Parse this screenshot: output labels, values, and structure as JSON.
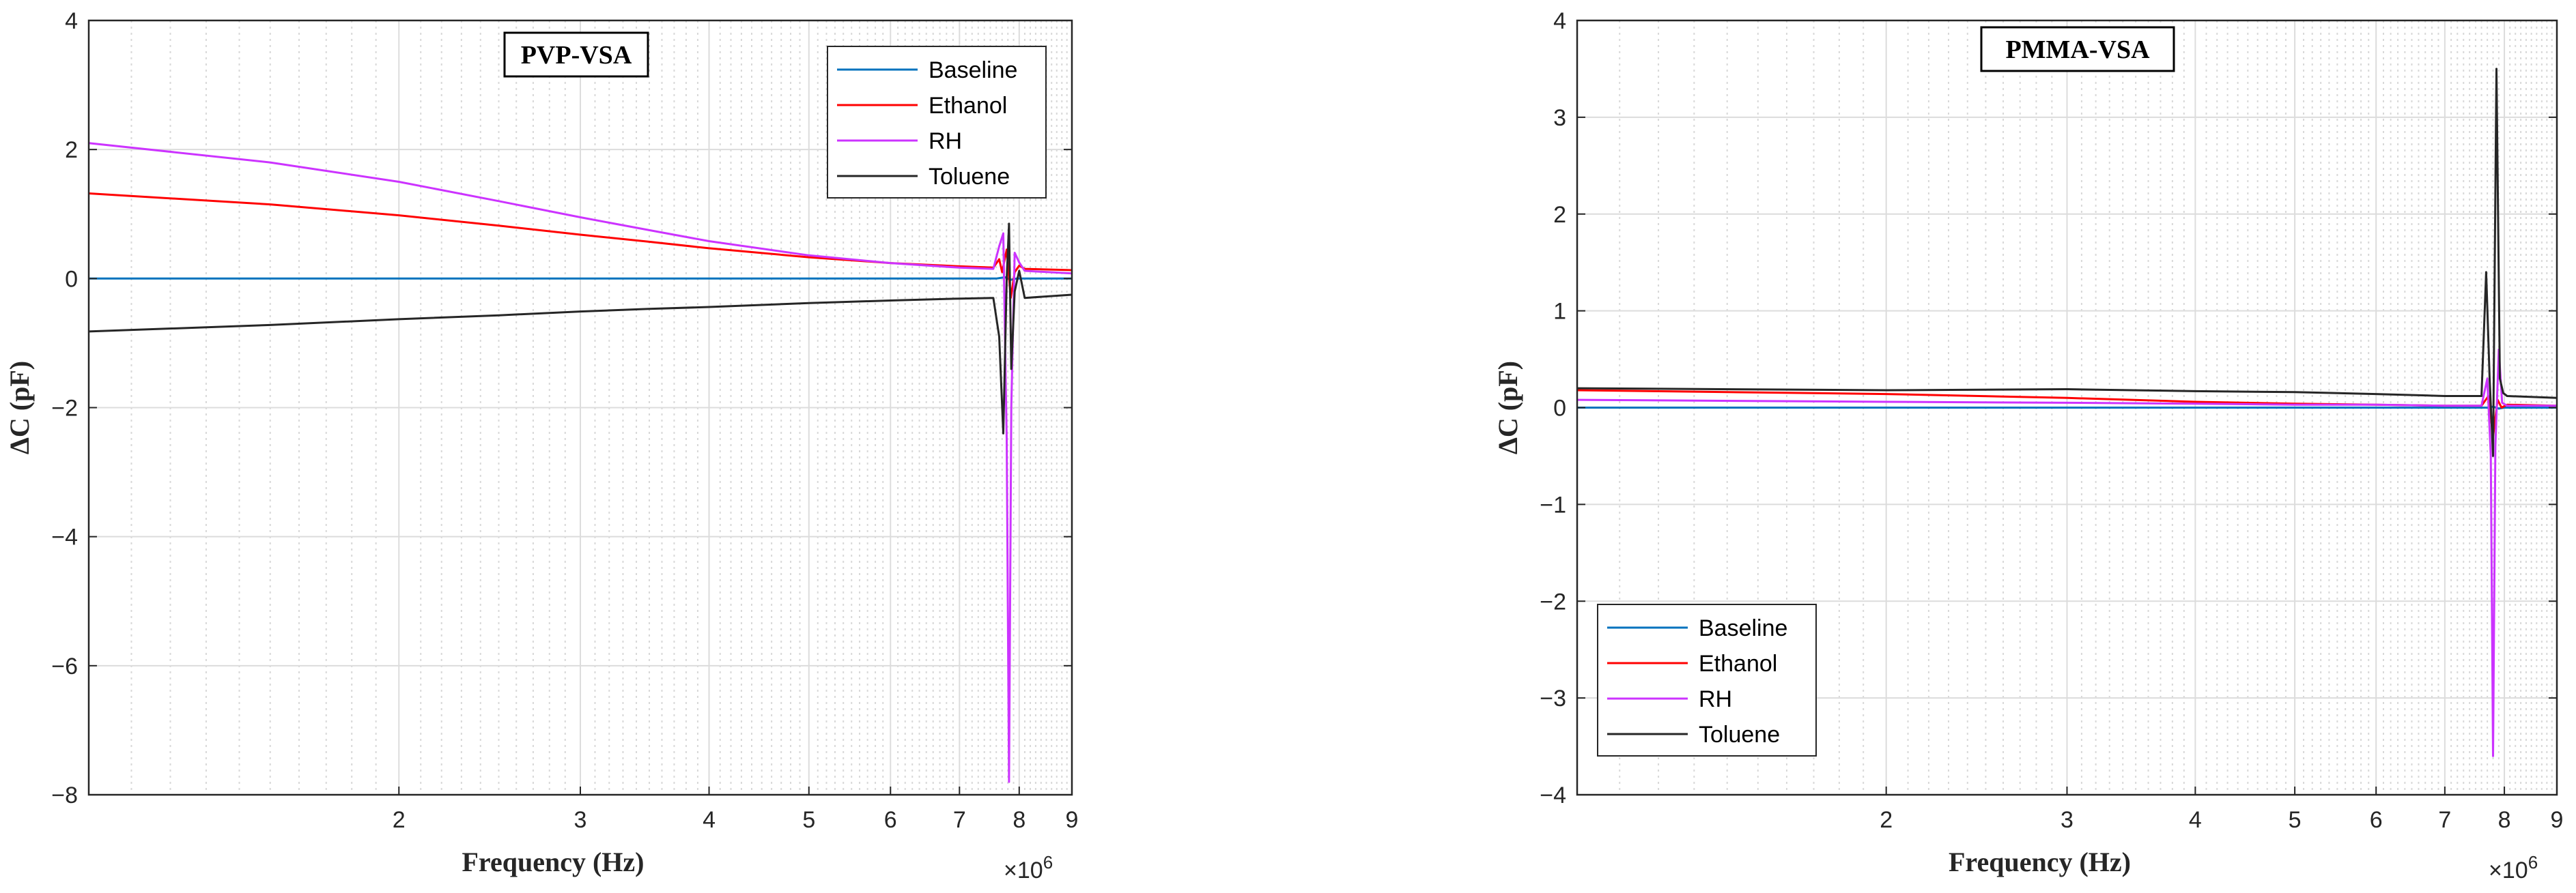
{
  "chart_data": [
    {
      "type": "line",
      "title": "PVP-VSA",
      "xlabel": "Frequency (Hz)",
      "ylabel": "ΔC (pF)",
      "xscale": "log",
      "xlim": [
        1.0,
        9.0
      ],
      "x_multiplier": "×10",
      "x_multiplier_exp": "6",
      "ylim": [
        -8,
        4
      ],
      "yticks": [
        -8,
        -6,
        -4,
        -2,
        0,
        2,
        4
      ],
      "yticklabels": [
        "−8",
        "−6",
        "−4",
        "−2",
        "0",
        "2",
        "4"
      ],
      "xticks": [
        2,
        3,
        4,
        5,
        6,
        7,
        8,
        9
      ],
      "xticklabels": [
        "2",
        "3",
        "4",
        "5",
        "6",
        "7",
        "8",
        "9"
      ],
      "grid": true,
      "legend_position": "top-right",
      "series": [
        {
          "name": "Baseline",
          "color": "#0072BD",
          "x": [
            1.0,
            2.0,
            3.0,
            4.0,
            5.0,
            6.0,
            7.0,
            7.6,
            7.75,
            7.85,
            7.95,
            8.1,
            9.0
          ],
          "y": [
            0.0,
            0.0,
            0.0,
            0.0,
            0.0,
            0.0,
            0.0,
            0.0,
            0.02,
            -0.02,
            0.0,
            0.0,
            0.0
          ]
        },
        {
          "name": "Ethanol",
          "color": "#FF0000",
          "x": [
            1.0,
            1.5,
            2.0,
            2.5,
            3.0,
            3.5,
            4.0,
            5.0,
            6.0,
            7.0,
            7.55,
            7.65,
            7.7,
            7.78,
            7.85,
            7.92,
            8.0,
            8.1,
            9.0
          ],
          "y": [
            1.32,
            1.15,
            0.98,
            0.82,
            0.68,
            0.57,
            0.47,
            0.33,
            0.24,
            0.19,
            0.17,
            0.3,
            0.1,
            0.45,
            -0.3,
            0.1,
            0.2,
            0.15,
            0.13
          ]
        },
        {
          "name": "RH",
          "color": "#CC33FF",
          "x": [
            1.0,
            1.5,
            2.0,
            2.5,
            3.0,
            3.5,
            4.0,
            5.0,
            6.0,
            7.0,
            7.55,
            7.65,
            7.72,
            7.78,
            7.82,
            7.86,
            7.92,
            8.0,
            8.1,
            9.0
          ],
          "y": [
            2.1,
            1.8,
            1.5,
            1.2,
            0.95,
            0.75,
            0.58,
            0.36,
            0.24,
            0.17,
            0.15,
            0.5,
            0.7,
            -2.5,
            -7.8,
            -2.0,
            0.4,
            0.25,
            0.12,
            0.08
          ]
        },
        {
          "name": "Toluene",
          "color": "#262626",
          "x": [
            1.0,
            1.5,
            2.0,
            2.5,
            3.0,
            3.5,
            4.0,
            5.0,
            6.0,
            7.0,
            7.55,
            7.65,
            7.72,
            7.78,
            7.82,
            7.86,
            7.92,
            8.0,
            8.1,
            9.0
          ],
          "y": [
            -0.82,
            -0.72,
            -0.63,
            -0.57,
            -0.51,
            -0.47,
            -0.44,
            -0.38,
            -0.34,
            -0.31,
            -0.3,
            -0.9,
            -2.4,
            0.0,
            0.85,
            -1.4,
            -0.2,
            0.12,
            -0.3,
            -0.25
          ]
        }
      ]
    },
    {
      "type": "line",
      "title": "PMMA-VSA",
      "xlabel": "Frequency (Hz)",
      "ylabel": "ΔC (pF)",
      "xscale": "log",
      "xlim": [
        1.0,
        9.0
      ],
      "x_multiplier": "×10",
      "x_multiplier_exp": "6",
      "ylim": [
        -4,
        4
      ],
      "yticks": [
        -4,
        -3,
        -2,
        -1,
        0,
        1,
        2,
        3,
        4
      ],
      "yticklabels": [
        "−4",
        "−3",
        "−2",
        "−1",
        "0",
        "1",
        "2",
        "3",
        "4"
      ],
      "xticks": [
        2,
        3,
        4,
        5,
        6,
        7,
        8,
        9
      ],
      "xticklabels": [
        "2",
        "3",
        "4",
        "5",
        "6",
        "7",
        "8",
        "9"
      ],
      "grid": true,
      "legend_position": "bottom-left",
      "series": [
        {
          "name": "Baseline",
          "color": "#0072BD",
          "x": [
            1.0,
            2.0,
            3.0,
            4.0,
            5.0,
            6.0,
            7.0,
            7.7,
            7.8,
            7.9,
            8.0,
            9.0
          ],
          "y": [
            0.0,
            0.0,
            0.0,
            0.0,
            0.0,
            0.0,
            0.0,
            0.0,
            0.01,
            -0.01,
            0.0,
            0.0
          ]
        },
        {
          "name": "Ethanol",
          "color": "#FF0000",
          "x": [
            1.0,
            2.0,
            3.0,
            4.0,
            5.0,
            6.0,
            7.0,
            7.6,
            7.72,
            7.8,
            7.88,
            7.95,
            8.05,
            9.0
          ],
          "y": [
            0.18,
            0.14,
            0.1,
            0.06,
            0.04,
            0.03,
            0.02,
            0.02,
            0.12,
            -0.3,
            0.08,
            0.0,
            0.03,
            0.02
          ]
        },
        {
          "name": "RH",
          "color": "#CC33FF",
          "x": [
            1.0,
            2.0,
            3.0,
            4.0,
            5.0,
            6.0,
            7.0,
            7.6,
            7.7,
            7.76,
            7.8,
            7.84,
            7.9,
            7.96,
            8.05,
            9.0
          ],
          "y": [
            0.08,
            0.06,
            0.05,
            0.04,
            0.03,
            0.03,
            0.02,
            0.02,
            0.3,
            -0.5,
            -3.6,
            -0.4,
            0.6,
            0.05,
            0.02,
            0.02
          ]
        },
        {
          "name": "Toluene",
          "color": "#262626",
          "x": [
            1.0,
            2.0,
            3.0,
            4.0,
            5.0,
            6.0,
            7.0,
            7.6,
            7.68,
            7.74,
            7.8,
            7.86,
            7.92,
            7.98,
            8.05,
            9.0
          ],
          "y": [
            0.2,
            0.18,
            0.19,
            0.17,
            0.16,
            0.14,
            0.12,
            0.12,
            1.4,
            0.3,
            -0.5,
            3.5,
            0.3,
            0.15,
            0.12,
            0.1
          ]
        }
      ]
    }
  ]
}
